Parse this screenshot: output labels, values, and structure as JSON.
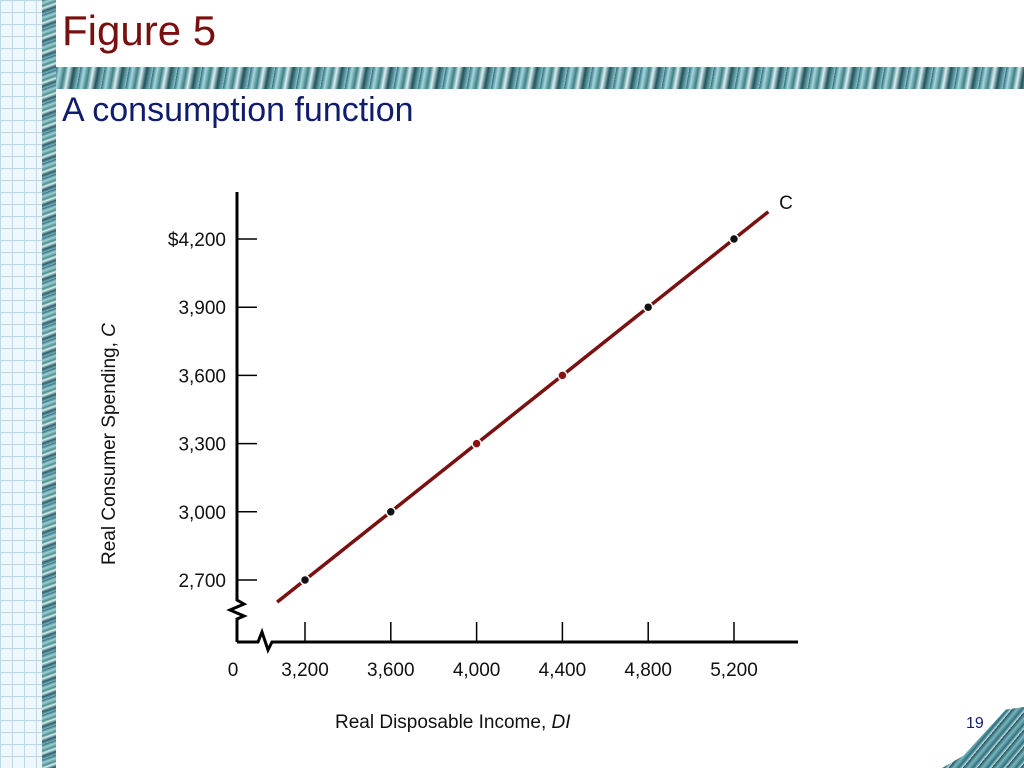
{
  "slide": {
    "title": "Figure 5",
    "subtitle": "A consumption function",
    "page_number": "19"
  },
  "colors": {
    "title": "#7a0f0f",
    "subtitle": "#101c6e",
    "line": "#7a1010",
    "point_dark": "#111111",
    "point_red": "#8b1010"
  },
  "chart_data": {
    "type": "line",
    "series": [
      {
        "name": "C",
        "x": [
          3200,
          3600,
          4000,
          4400,
          4800,
          5200
        ],
        "values": [
          2700,
          3000,
          3300,
          3600,
          3900,
          4200
        ],
        "point_colors": [
          "dark",
          "dark",
          "red",
          "red",
          "dark",
          "dark"
        ]
      }
    ],
    "xlabel": "Real Disposable Income, ",
    "xlabel_italic": "DI",
    "ylabel": "Real Consumer Spending, ",
    "ylabel_italic": "C",
    "x_ticks": [
      "3,200",
      "3,600",
      "4,000",
      "4,400",
      "4,800",
      "5,200"
    ],
    "y_ticks": [
      "$4,200",
      "3,900",
      "3,600",
      "3,300",
      "3,000",
      "2,700"
    ],
    "origin_label": "0",
    "xlim": [
      3200,
      5200
    ],
    "ylim": [
      2700,
      4200
    ],
    "axis_breaks": true,
    "grid": false
  }
}
